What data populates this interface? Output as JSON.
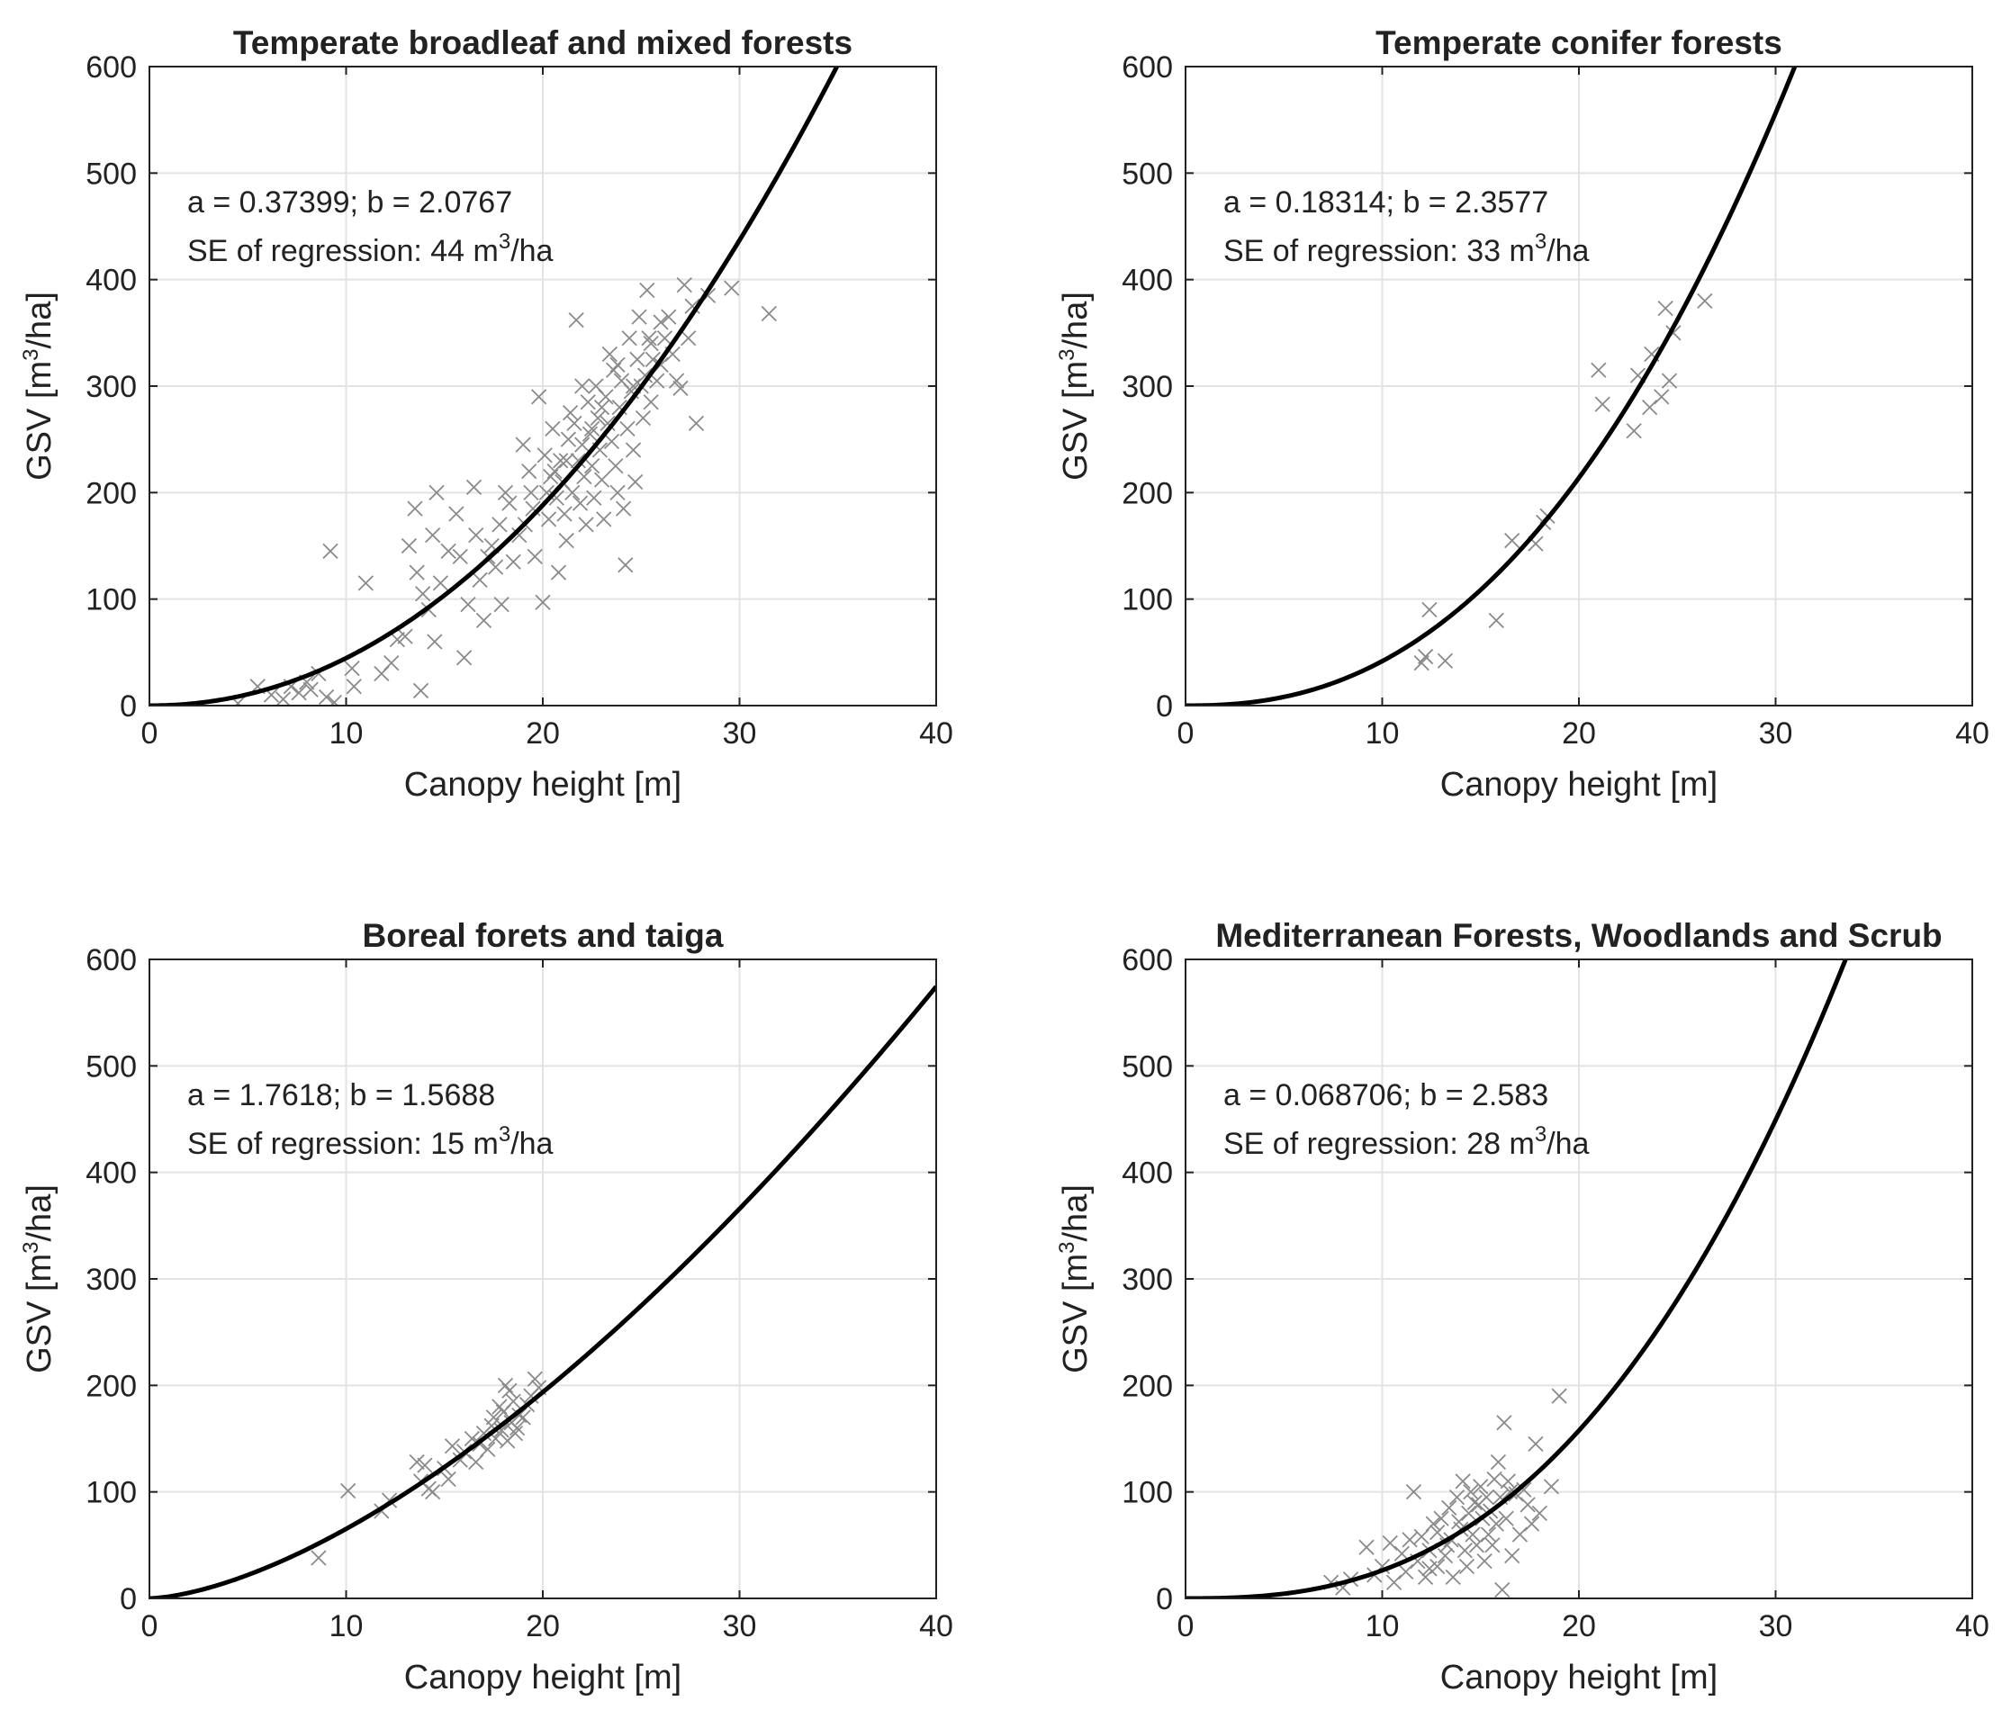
{
  "figure": {
    "background": "#ffffff",
    "grid_color": "#e3e3e3",
    "curve_color": "#000000",
    "marker_color": "#8a8a8a",
    "axis_color": "#222222"
  },
  "chart_data": [
    {
      "type": "scatter",
      "title": "Temperate broadleaf and mixed forests",
      "xlabel": "Canopy height [m]",
      "ylabel": {
        "prefix": "GSV [m",
        "sup": "3",
        "suffix": "/ha]"
      },
      "xlim": [
        0,
        40
      ],
      "ylim": [
        0,
        600
      ],
      "xticks": [
        0,
        10,
        20,
        30,
        40
      ],
      "yticks": [
        0,
        100,
        200,
        300,
        400,
        500,
        600
      ],
      "grid": true,
      "annotation": {
        "line1": "a = 0.37399; b = 2.0767",
        "line2": {
          "prefix": "SE of regression: 44 m",
          "sup": "3",
          "suffix": "/ha"
        }
      },
      "fit": {
        "model": "GSV = a * h^b",
        "a": 0.37399,
        "b": 2.0767
      },
      "points": [
        [
          4.5,
          2
        ],
        [
          5.5,
          18
        ],
        [
          6.2,
          10
        ],
        [
          6.8,
          6
        ],
        [
          7.2,
          18
        ],
        [
          7.6,
          12
        ],
        [
          8.0,
          22
        ],
        [
          8.2,
          15
        ],
        [
          8.6,
          30
        ],
        [
          9.0,
          8
        ],
        [
          9.2,
          145
        ],
        [
          9.4,
          3
        ],
        [
          10.3,
          35
        ],
        [
          10.4,
          18
        ],
        [
          11.0,
          115
        ],
        [
          11.8,
          30
        ],
        [
          12.3,
          40
        ],
        [
          12.6,
          62
        ],
        [
          13.0,
          65
        ],
        [
          13.2,
          150
        ],
        [
          13.5,
          185
        ],
        [
          13.6,
          125
        ],
        [
          13.8,
          14
        ],
        [
          13.9,
          105
        ],
        [
          14.2,
          90
        ],
        [
          14.4,
          160
        ],
        [
          14.5,
          60
        ],
        [
          14.6,
          200
        ],
        [
          14.8,
          115
        ],
        [
          15.2,
          145
        ],
        [
          15.6,
          180
        ],
        [
          15.8,
          140
        ],
        [
          16.0,
          45
        ],
        [
          16.2,
          95
        ],
        [
          16.5,
          205
        ],
        [
          16.6,
          160
        ],
        [
          16.8,
          118
        ],
        [
          17.0,
          80
        ],
        [
          17.2,
          140
        ],
        [
          17.4,
          150
        ],
        [
          17.6,
          130
        ],
        [
          17.8,
          170
        ],
        [
          17.9,
          95
        ],
        [
          18.1,
          200
        ],
        [
          18.3,
          190
        ],
        [
          18.5,
          135
        ],
        [
          18.8,
          160
        ],
        [
          19.0,
          245
        ],
        [
          19.1,
          170
        ],
        [
          19.3,
          220
        ],
        [
          19.5,
          185
        ],
        [
          19.6,
          140
        ],
        [
          19.8,
          290
        ],
        [
          20.0,
          97
        ],
        [
          20.1,
          235
        ],
        [
          20.2,
          200
        ],
        [
          20.3,
          175
        ],
        [
          20.4,
          215
        ],
        [
          20.5,
          260
        ],
        [
          20.7,
          195
        ],
        [
          20.8,
          125
        ],
        [
          20.9,
          230
        ],
        [
          21.0,
          210
        ],
        [
          21.1,
          180
        ],
        [
          21.2,
          155
        ],
        [
          21.3,
          250
        ],
        [
          21.4,
          275
        ],
        [
          21.5,
          200
        ],
        [
          21.6,
          265
        ],
        [
          21.7,
          362
        ],
        [
          21.8,
          230
        ],
        [
          21.9,
          190
        ],
        [
          22.0,
          245
        ],
        [
          22.1,
          215
        ],
        [
          22.2,
          170
        ],
        [
          22.3,
          285
        ],
        [
          22.4,
          255
        ],
        [
          22.5,
          225
        ],
        [
          22.6,
          195
        ],
        [
          22.7,
          300
        ],
        [
          22.8,
          270
        ],
        [
          22.9,
          240
        ],
        [
          23.0,
          212
        ],
        [
          23.1,
          175
        ],
        [
          23.2,
          290
        ],
        [
          23.3,
          265
        ],
        [
          23.4,
          330
        ],
        [
          23.5,
          248
        ],
        [
          23.6,
          315
        ],
        [
          23.7,
          225
        ],
        [
          23.8,
          200
        ],
        [
          23.9,
          280
        ],
        [
          24.0,
          305
        ],
        [
          24.1,
          185
        ],
        [
          24.2,
          132
        ],
        [
          24.3,
          260
        ],
        [
          24.4,
          345
        ],
        [
          24.5,
          295
        ],
        [
          24.6,
          240
        ],
        [
          24.7,
          210
        ],
        [
          24.8,
          325
        ],
        [
          24.9,
          365
        ],
        [
          25.0,
          300
        ],
        [
          25.1,
          270
        ],
        [
          25.2,
          310
        ],
        [
          25.3,
          390
        ],
        [
          25.4,
          345
        ],
        [
          25.5,
          285
        ],
        [
          25.6,
          325
        ],
        [
          25.8,
          305
        ],
        [
          26.0,
          360
        ],
        [
          26.2,
          345
        ],
        [
          26.4,
          365
        ],
        [
          26.6,
          330
        ],
        [
          26.8,
          305
        ],
        [
          27.0,
          298
        ],
        [
          27.2,
          395
        ],
        [
          27.4,
          345
        ],
        [
          27.6,
          375
        ],
        [
          27.8,
          265
        ],
        [
          28.4,
          385
        ],
        [
          29.6,
          392
        ],
        [
          31.5,
          368
        ],
        [
          23.0,
          280
        ],
        [
          24.6,
          300
        ],
        [
          22.5,
          260
        ],
        [
          21.2,
          230
        ],
        [
          20.6,
          220
        ],
        [
          25.5,
          340
        ],
        [
          23.8,
          320
        ],
        [
          19.4,
          200
        ],
        [
          22.0,
          300
        ],
        [
          26.0,
          320
        ]
      ]
    },
    {
      "type": "scatter",
      "title": "Temperate conifer forests",
      "xlabel": "Canopy height [m]",
      "ylabel": {
        "prefix": "GSV [m",
        "sup": "3",
        "suffix": "/ha]"
      },
      "xlim": [
        0,
        40
      ],
      "ylim": [
        0,
        600
      ],
      "xticks": [
        0,
        10,
        20,
        30,
        40
      ],
      "yticks": [
        0,
        100,
        200,
        300,
        400,
        500,
        600
      ],
      "grid": true,
      "annotation": {
        "line1": "a = 0.18314; b = 2.3577",
        "line2": {
          "prefix": "SE of regression: 33 m",
          "sup": "3",
          "suffix": "/ha"
        }
      },
      "fit": {
        "model": "GSV = a * h^b",
        "a": 0.18314,
        "b": 2.3577
      },
      "points": [
        [
          12.0,
          40
        ],
        [
          12.2,
          46
        ],
        [
          12.4,
          90
        ],
        [
          13.2,
          42
        ],
        [
          15.8,
          80
        ],
        [
          16.6,
          155
        ],
        [
          17.8,
          152
        ],
        [
          18.2,
          172
        ],
        [
          18.4,
          178
        ],
        [
          21.0,
          315
        ],
        [
          21.2,
          283
        ],
        [
          22.8,
          258
        ],
        [
          23.0,
          310
        ],
        [
          23.6,
          280
        ],
        [
          23.7,
          330
        ],
        [
          24.2,
          290
        ],
        [
          24.4,
          373
        ],
        [
          24.6,
          305
        ],
        [
          24.8,
          350
        ],
        [
          26.4,
          380
        ]
      ]
    },
    {
      "type": "scatter",
      "title": "Boreal forets and taiga",
      "xlabel": "Canopy height [m]",
      "ylabel": {
        "prefix": "GSV [m",
        "sup": "3",
        "suffix": "/ha]"
      },
      "xlim": [
        0,
        40
      ],
      "ylim": [
        0,
        600
      ],
      "xticks": [
        0,
        10,
        20,
        30,
        40
      ],
      "yticks": [
        0,
        100,
        200,
        300,
        400,
        500,
        600
      ],
      "grid": true,
      "annotation": {
        "line1": "a = 1.7618; b = 1.5688",
        "line2": {
          "prefix": "SE of regression: 15 m",
          "sup": "3",
          "suffix": "/ha"
        }
      },
      "fit": {
        "model": "GSV = a * h^b",
        "a": 1.7618,
        "b": 1.5688
      },
      "points": [
        [
          8.6,
          38
        ],
        [
          10.1,
          101
        ],
        [
          11.8,
          82
        ],
        [
          12.2,
          92
        ],
        [
          13.6,
          128
        ],
        [
          13.8,
          110
        ],
        [
          14.0,
          125
        ],
        [
          14.2,
          103
        ],
        [
          14.4,
          100
        ],
        [
          15.0,
          122
        ],
        [
          15.2,
          112
        ],
        [
          15.4,
          143
        ],
        [
          15.8,
          130
        ],
        [
          16.0,
          138
        ],
        [
          16.4,
          150
        ],
        [
          16.6,
          128
        ],
        [
          16.8,
          145
        ],
        [
          17.0,
          155
        ],
        [
          17.2,
          140
        ],
        [
          17.4,
          162
        ],
        [
          17.6,
          150
        ],
        [
          17.8,
          180
        ],
        [
          17.9,
          158
        ],
        [
          18.0,
          175
        ],
        [
          18.1,
          200
        ],
        [
          18.2,
          148
        ],
        [
          18.3,
          195
        ],
        [
          18.4,
          165
        ],
        [
          18.5,
          185
        ],
        [
          18.6,
          155
        ],
        [
          18.8,
          172
        ],
        [
          19.0,
          170
        ],
        [
          19.2,
          182
        ],
        [
          19.4,
          190
        ],
        [
          19.6,
          206
        ],
        [
          19.8,
          198
        ],
        [
          18.7,
          160
        ],
        [
          17.5,
          170
        ]
      ]
    },
    {
      "type": "scatter",
      "title": "Mediterranean Forests, Woodlands and Scrub",
      "xlabel": "Canopy height [m]",
      "ylabel": {
        "prefix": "GSV [m",
        "sup": "3",
        "suffix": "/ha]"
      },
      "xlim": [
        0,
        40
      ],
      "ylim": [
        0,
        600
      ],
      "xticks": [
        0,
        10,
        20,
        30,
        40
      ],
      "yticks": [
        0,
        100,
        200,
        300,
        400,
        500,
        600
      ],
      "grid": true,
      "annotation": {
        "line1": "a = 0.068706; b = 2.583",
        "line2": {
          "prefix": "SE of regression: 28 m",
          "sup": "3",
          "suffix": "/ha"
        }
      },
      "fit": {
        "model": "GSV = a * h^b",
        "a": 0.068706,
        "b": 2.583
      },
      "points": [
        [
          7.4,
          15
        ],
        [
          8.0,
          10
        ],
        [
          8.4,
          18
        ],
        [
          9.2,
          48
        ],
        [
          9.6,
          22
        ],
        [
          10.0,
          30
        ],
        [
          10.4,
          52
        ],
        [
          10.6,
          15
        ],
        [
          11.0,
          42
        ],
        [
          11.2,
          25
        ],
        [
          11.4,
          55
        ],
        [
          11.6,
          100
        ],
        [
          11.8,
          35
        ],
        [
          12.0,
          58
        ],
        [
          12.2,
          20
        ],
        [
          12.4,
          45
        ],
        [
          12.6,
          70
        ],
        [
          12.8,
          30
        ],
        [
          13.0,
          75
        ],
        [
          13.2,
          40
        ],
        [
          13.4,
          85
        ],
        [
          13.5,
          55
        ],
        [
          13.6,
          20
        ],
        [
          13.8,
          95
        ],
        [
          14.0,
          65
        ],
        [
          14.1,
          110
        ],
        [
          14.2,
          45
        ],
        [
          14.3,
          30
        ],
        [
          14.4,
          80
        ],
        [
          14.5,
          100
        ],
        [
          14.6,
          60
        ],
        [
          14.7,
          90
        ],
        [
          14.8,
          50
        ],
        [
          15.0,
          105
        ],
        [
          15.1,
          75
        ],
        [
          15.2,
          35
        ],
        [
          15.3,
          95
        ],
        [
          15.4,
          60
        ],
        [
          15.5,
          82
        ],
        [
          15.6,
          50
        ],
        [
          15.7,
          112
        ],
        [
          15.8,
          70
        ],
        [
          15.9,
          128
        ],
        [
          16.0,
          95
        ],
        [
          16.1,
          8
        ],
        [
          16.2,
          165
        ],
        [
          16.3,
          75
        ],
        [
          16.4,
          110
        ],
        [
          16.5,
          100
        ],
        [
          16.6,
          40
        ],
        [
          16.8,
          98
        ],
        [
          17.0,
          60
        ],
        [
          17.2,
          102
        ],
        [
          17.4,
          88
        ],
        [
          17.6,
          70
        ],
        [
          17.8,
          145
        ],
        [
          18.0,
          80
        ],
        [
          18.6,
          105
        ],
        [
          19.0,
          190
        ],
        [
          12.8,
          62
        ],
        [
          13.3,
          50
        ],
        [
          14.9,
          88
        ],
        [
          12.4,
          28
        ],
        [
          13.9,
          72
        ]
      ]
    }
  ]
}
